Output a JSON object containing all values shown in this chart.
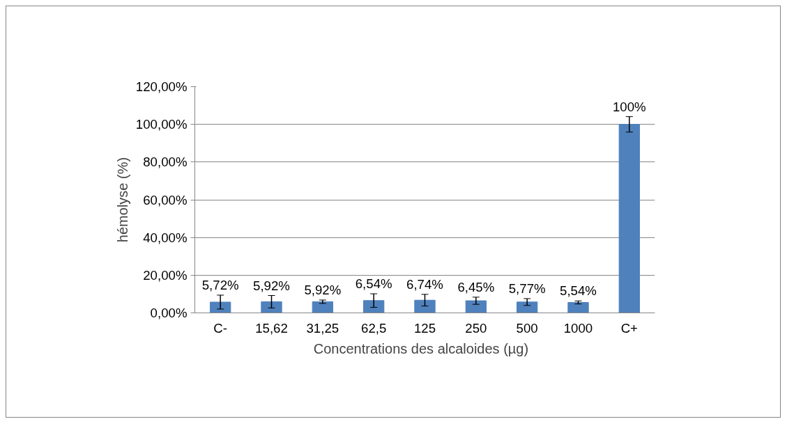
{
  "chart_data": {
    "type": "bar",
    "xlabel": "Concentrations  des  alcaloides (µg)",
    "ylabel": "hémolyse (%)",
    "categories": [
      "C-",
      "15,62",
      "31,25",
      "62,5",
      "125",
      "250",
      "500",
      "1000",
      "C+"
    ],
    "values": [
      5.72,
      5.92,
      5.92,
      6.54,
      6.74,
      6.45,
      5.77,
      5.54,
      100
    ],
    "errors": [
      3.7,
      3.3,
      0.9,
      3.6,
      3.1,
      1.9,
      1.8,
      0.8,
      4.1
    ],
    "value_labels": [
      "5,72%",
      "5,92%",
      "5,92%",
      "6,54%",
      "6,74%",
      "6,45%",
      "5,77%",
      "5,54%",
      "100%"
    ],
    "color": "#4f81bd",
    "ylim": [
      0,
      120
    ],
    "yticks": [
      {
        "value": 0,
        "label": "0,00%"
      },
      {
        "value": 20,
        "label": "20,00%"
      },
      {
        "value": 40,
        "label": "40,00%"
      },
      {
        "value": 60,
        "label": "60,00%"
      },
      {
        "value": 80,
        "label": "80,00%"
      },
      {
        "value": 100,
        "label": "100,00%"
      },
      {
        "value": 120,
        "label": "120,00%"
      }
    ],
    "grid": "y"
  }
}
